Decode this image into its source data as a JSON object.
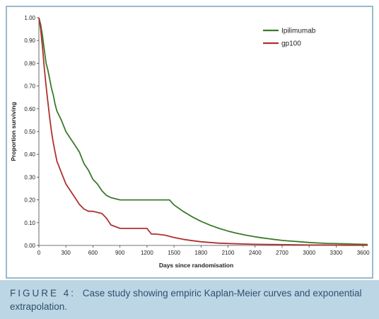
{
  "chart_data": {
    "type": "line",
    "xlabel": "Days since randomisation",
    "ylabel": "Proportion surviving",
    "xlim": [
      0,
      3650
    ],
    "ylim": [
      0,
      1.0
    ],
    "x_ticks": [
      0,
      300,
      600,
      900,
      1200,
      1500,
      1800,
      2100,
      2400,
      2700,
      3000,
      3300,
      3600
    ],
    "y_ticks": [
      "0.00",
      "0.10",
      "0.20",
      "0.30",
      "0.40",
      "0.50",
      "0.60",
      "0.70",
      "0.80",
      "0.90",
      "1.00"
    ],
    "legend_position": "top-right",
    "series": [
      {
        "name": "Ipilimumab",
        "color": "#3a7a2a",
        "x": [
          0,
          20,
          40,
          60,
          80,
          100,
          120,
          140,
          160,
          180,
          200,
          250,
          300,
          350,
          400,
          450,
          500,
          550,
          600,
          650,
          700,
          750,
          800,
          900,
          1000,
          1100,
          1200,
          1300,
          1400,
          1450,
          1500,
          1600,
          1700,
          1800,
          1900,
          2000,
          2100,
          2200,
          2300,
          2400,
          2500,
          2600,
          2700,
          2800,
          2900,
          3000,
          3100,
          3200,
          3300,
          3400,
          3500,
          3600,
          3650
        ],
        "y": [
          1.0,
          0.97,
          0.92,
          0.86,
          0.8,
          0.77,
          0.73,
          0.69,
          0.66,
          0.62,
          0.59,
          0.55,
          0.5,
          0.47,
          0.44,
          0.41,
          0.36,
          0.33,
          0.29,
          0.27,
          0.24,
          0.22,
          0.21,
          0.2,
          0.2,
          0.2,
          0.2,
          0.2,
          0.2,
          0.2,
          0.178,
          0.15,
          0.126,
          0.106,
          0.089,
          0.075,
          0.063,
          0.053,
          0.045,
          0.038,
          0.032,
          0.027,
          0.022,
          0.019,
          0.016,
          0.013,
          0.011,
          0.009,
          0.008,
          0.007,
          0.006,
          0.005,
          0.004
        ]
      },
      {
        "name": "gp100",
        "color": "#b03030",
        "x": [
          0,
          20,
          40,
          60,
          80,
          100,
          120,
          140,
          160,
          180,
          200,
          250,
          300,
          350,
          400,
          450,
          500,
          550,
          600,
          700,
          750,
          800,
          900,
          1000,
          1100,
          1200,
          1250,
          1300,
          1400,
          1500,
          1600,
          1700,
          1800,
          1900,
          2000,
          2200,
          2400,
          2600,
          2800,
          3000,
          3200,
          3400,
          3650
        ],
        "y": [
          1.0,
          0.95,
          0.87,
          0.78,
          0.7,
          0.63,
          0.56,
          0.5,
          0.45,
          0.41,
          0.37,
          0.32,
          0.27,
          0.24,
          0.21,
          0.18,
          0.16,
          0.15,
          0.15,
          0.14,
          0.12,
          0.09,
          0.075,
          0.075,
          0.075,
          0.075,
          0.05,
          0.05,
          0.045,
          0.035,
          0.027,
          0.021,
          0.016,
          0.013,
          0.01,
          0.007,
          0.005,
          0.004,
          0.003,
          0.002,
          0.002,
          0.001,
          0.001
        ]
      }
    ]
  },
  "caption": {
    "label": "FIGURE 4:",
    "text": "Case study showing empiric Kaplan-Meier curves and exponential extrapolation."
  }
}
